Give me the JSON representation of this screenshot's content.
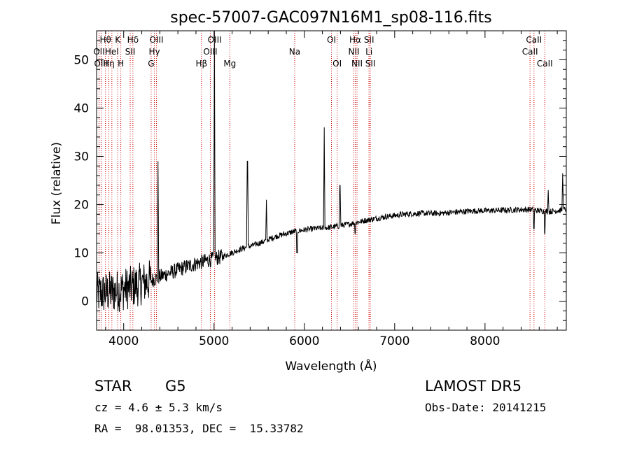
{
  "chart_data": {
    "type": "line",
    "title": "spec-57007-GAC097N16M1_sp08-116.fits",
    "xlabel": "Wavelength (Å)",
    "ylabel": "Flux (relative)",
    "xlim": [
      3700,
      8900
    ],
    "ylim": [
      -6,
      56
    ],
    "xticks": [
      4000,
      5000,
      6000,
      7000,
      8000
    ],
    "yticks": [
      0,
      10,
      20,
      30,
      40,
      50
    ],
    "grid": false,
    "continuum": {
      "x": [
        3700,
        3900,
        4100,
        4300,
        4500,
        4700,
        4900,
        5100,
        5300,
        5500,
        5700,
        5900,
        6100,
        6300,
        6500,
        6700,
        6900,
        7100,
        7300,
        7500,
        7700,
        7900,
        8100,
        8300,
        8500,
        8700,
        8900
      ],
      "y": [
        1.5,
        2.0,
        3.0,
        4.3,
        5.8,
        7.2,
        8.3,
        9.3,
        10.8,
        12.0,
        13.5,
        14.5,
        15.0,
        15.3,
        16.0,
        16.8,
        17.5,
        18.0,
        18.2,
        18.2,
        18.5,
        18.7,
        18.8,
        18.9,
        19.0,
        18.5,
        19.0
      ]
    },
    "emission_peaks": [
      {
        "x": 4380,
        "y": 29
      },
      {
        "x": 5004,
        "y": 56
      },
      {
        "x": 5370,
        "y": 29
      },
      {
        "x": 5580,
        "y": 21
      },
      {
        "x": 6220,
        "y": 36
      },
      {
        "x": 6395,
        "y": 24
      },
      {
        "x": 8700,
        "y": 23
      },
      {
        "x": 8860,
        "y": 26.5
      }
    ],
    "absorption_dips": [
      {
        "x": 5920,
        "y": 10
      },
      {
        "x": 6563,
        "y": 14
      },
      {
        "x": 8542,
        "y": 15
      },
      {
        "x": 8662,
        "y": 14
      }
    ],
    "line_markers": [
      {
        "x": 3727,
        "label": "OII",
        "row": 1
      },
      {
        "x": 3750,
        "label": "OIII",
        "row": 2
      },
      {
        "x": 3798,
        "label": "Hθ",
        "row": 0
      },
      {
        "x": 3835,
        "label": "Hη",
        "row": 2
      },
      {
        "x": 3869,
        "label": "HeI",
        "row": 1
      },
      {
        "x": 3934,
        "label": "K",
        "row": 0
      },
      {
        "x": 3968,
        "label": "H",
        "row": 2
      },
      {
        "x": 4072,
        "label": "SII",
        "row": 1
      },
      {
        "x": 4102,
        "label": "Hδ",
        "row": 0
      },
      {
        "x": 4304,
        "label": "G",
        "row": 2
      },
      {
        "x": 4340,
        "label": "Hγ",
        "row": 1
      },
      {
        "x": 4363,
        "label": "OIII",
        "row": 0
      },
      {
        "x": 4861,
        "label": "Hβ",
        "row": 2
      },
      {
        "x": 4959,
        "label": "OIII",
        "row": 1
      },
      {
        "x": 5007,
        "label": "OIII",
        "row": 0
      },
      {
        "x": 5175,
        "label": "Mg",
        "row": 2
      },
      {
        "x": 5893,
        "label": "Na",
        "row": 1
      },
      {
        "x": 6300,
        "label": "OI",
        "row": 0
      },
      {
        "x": 6363,
        "label": "OI",
        "row": 2
      },
      {
        "x": 6548,
        "label": "NII",
        "row": 1
      },
      {
        "x": 6563,
        "label": "Hα",
        "row": 0
      },
      {
        "x": 6583,
        "label": "NII",
        "row": 2
      },
      {
        "x": 6716,
        "label": "SII",
        "row": 0
      },
      {
        "x": 6716,
        "label": "Li",
        "row": 1
      },
      {
        "x": 6731,
        "label": "SII",
        "row": 2
      },
      {
        "x": 8498,
        "label": "CaII",
        "row": 1
      },
      {
        "x": 8542,
        "label": "CaII",
        "row": 0
      },
      {
        "x": 8662,
        "label": "CaII",
        "row": 2
      }
    ]
  },
  "footer": {
    "class_label": "STAR",
    "subclass": "G5",
    "survey": "LAMOST DR5",
    "redshift": "cz = 4.6 ± 5.3 km/s",
    "obs_date": "Obs-Date: 20141215",
    "coords": "RA =  98.01353, DEC =  15.33782"
  },
  "colors": {
    "axis": "#000000",
    "spectrum": "#000000",
    "marker": "#cc0000"
  }
}
